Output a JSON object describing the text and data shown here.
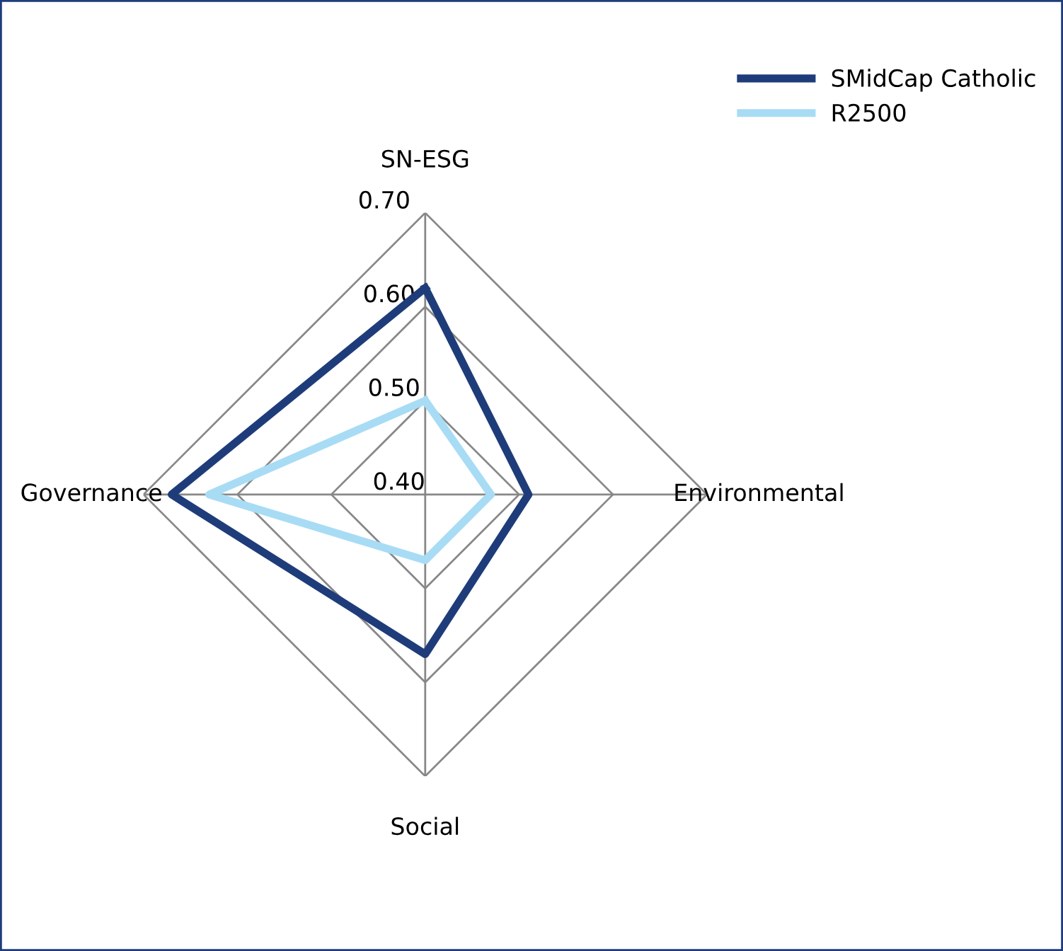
{
  "chart_data": {
    "type": "radar",
    "categories": [
      "SN-ESG",
      "Environmental",
      "Social",
      "Governance"
    ],
    "series": [
      {
        "name": "SMidCap Catholic",
        "color": "#1f3c7a",
        "values": [
          0.62,
          0.51,
          0.57,
          0.67
        ]
      },
      {
        "name": "R2500",
        "color": "#a8dcf5",
        "values": [
          0.5,
          0.47,
          0.47,
          0.63
        ]
      }
    ],
    "ylim": [
      0.4,
      0.7
    ],
    "yticks": [
      {
        "value": 0.4,
        "label": "0.40"
      },
      {
        "value": 0.5,
        "label": "0.50"
      },
      {
        "value": 0.6,
        "label": "0.60"
      },
      {
        "value": 0.7,
        "label": "0.70"
      }
    ],
    "grid": true,
    "legend": "top right"
  }
}
